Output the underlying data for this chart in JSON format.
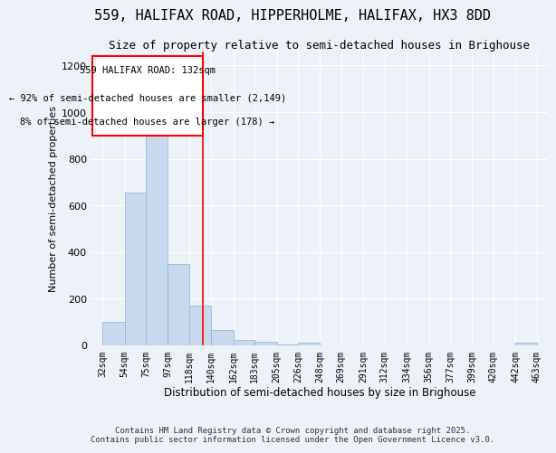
{
  "title": "559, HALIFAX ROAD, HIPPERHOLME, HALIFAX, HX3 8DD",
  "subtitle": "Size of property relative to semi-detached houses in Brighouse",
  "xlabel": "Distribution of semi-detached houses by size in Brighouse",
  "ylabel": "Number of semi-detached properties",
  "bar_color": "#c9d9ed",
  "bar_edge_color": "#8aafd4",
  "bin_edges": [
    32,
    54,
    75,
    97,
    118,
    140,
    162,
    183,
    205,
    226,
    248,
    269,
    291,
    312,
    334,
    356,
    377,
    399,
    420,
    442,
    463
  ],
  "bar_heights": [
    100,
    655,
    930,
    350,
    170,
    65,
    23,
    17,
    5,
    10,
    0,
    0,
    0,
    0,
    0,
    0,
    0,
    0,
    0,
    10
  ],
  "red_line_x": 132,
  "annotation_title": "559 HALIFAX ROAD: 132sqm",
  "annotation_line1": "← 92% of semi-detached houses are smaller (2,149)",
  "annotation_line2": "8% of semi-detached houses are larger (178) →",
  "ylim": [
    0,
    1260
  ],
  "xlim_left": 21,
  "xlim_right": 474,
  "footnote1": "Contains HM Land Registry data © Crown copyright and database right 2025.",
  "footnote2": "Contains public sector information licensed under the Open Government Licence v3.0.",
  "background_color": "#edf2f9",
  "grid_color": "#ffffff",
  "title_fontsize": 11,
  "subtitle_fontsize": 9,
  "annotation_fontsize": 7.5,
  "tick_fontsize": 7,
  "ylabel_fontsize": 8,
  "xlabel_fontsize": 8.5,
  "footnote_fontsize": 6.5,
  "ytick_fontsize": 8
}
